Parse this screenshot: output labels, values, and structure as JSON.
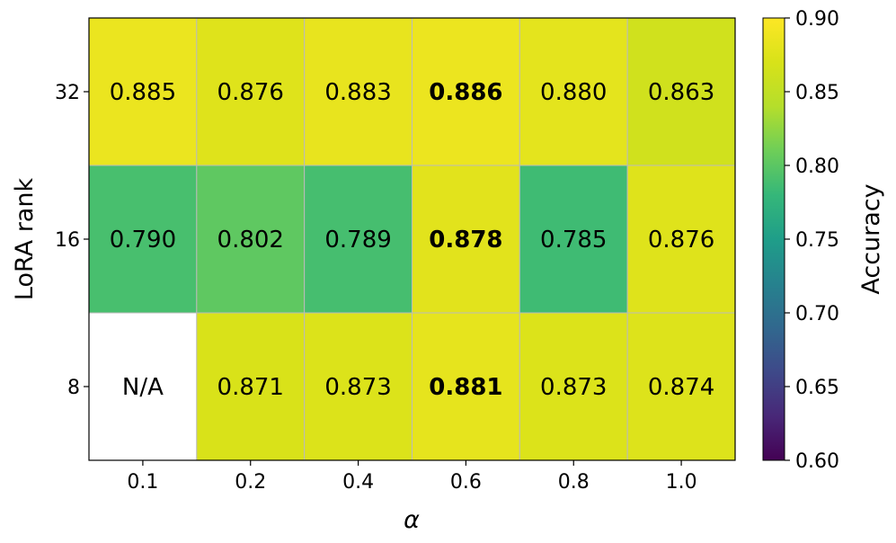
{
  "chart_data": {
    "type": "heatmap",
    "title": "",
    "xlabel": "α",
    "ylabel": "LoRA rank",
    "x_categories": [
      "0.1",
      "0.2",
      "0.4",
      "0.6",
      "0.8",
      "1.0"
    ],
    "y_categories": [
      "32",
      "16",
      "8"
    ],
    "values": [
      [
        0.885,
        0.876,
        0.883,
        0.886,
        0.88,
        0.863
      ],
      [
        0.79,
        0.802,
        0.789,
        0.878,
        0.785,
        0.876
      ],
      [
        null,
        0.871,
        0.873,
        0.881,
        0.873,
        0.874
      ]
    ],
    "cell_labels": [
      [
        "0.885",
        "0.876",
        "0.883",
        "0.886",
        "0.880",
        "0.863"
      ],
      [
        "0.790",
        "0.802",
        "0.789",
        "0.878",
        "0.785",
        "0.876"
      ],
      [
        "N/A",
        "0.871",
        "0.873",
        "0.881",
        "0.873",
        "0.874"
      ]
    ],
    "bold_column": "0.6",
    "missing_cell_color": "#ffffff",
    "colormap": "viridis",
    "colorbar": {
      "label": "Accuracy",
      "range": [
        0.6,
        0.9
      ],
      "ticks": [
        "0.60",
        "0.65",
        "0.70",
        "0.75",
        "0.80",
        "0.85",
        "0.90"
      ]
    },
    "grid": true,
    "gridline_color": "#bbbbbb"
  }
}
